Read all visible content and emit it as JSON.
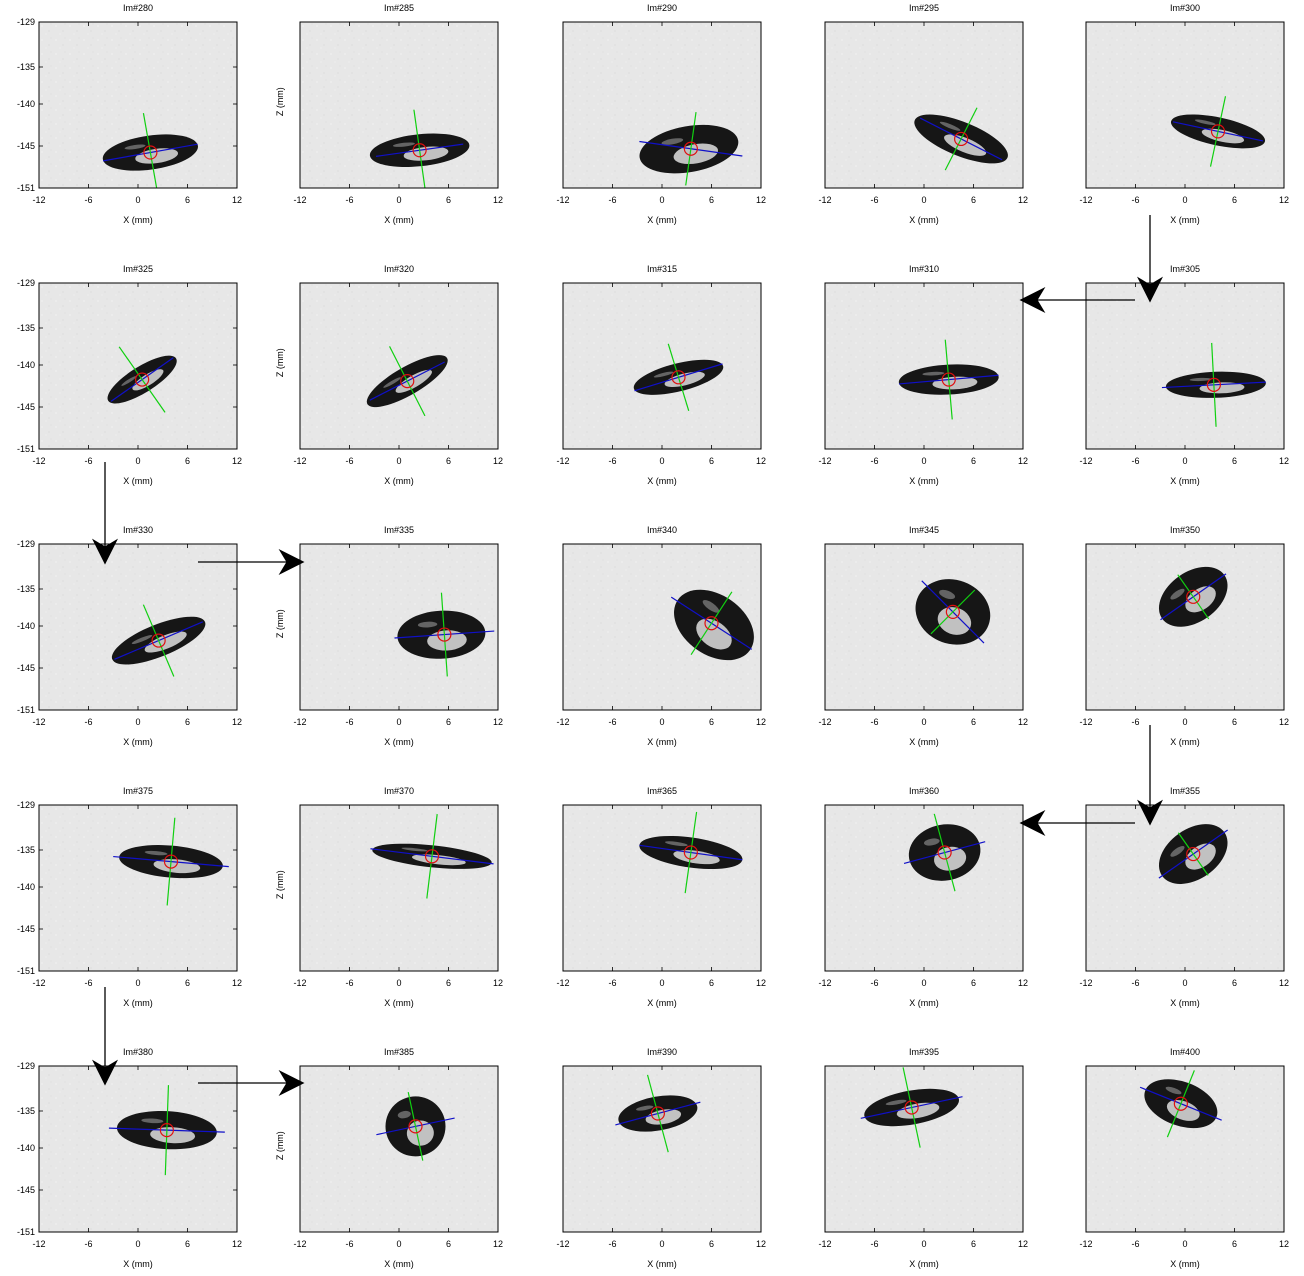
{
  "x_ticks": [
    "-12",
    "-6",
    "0",
    "6",
    "12"
  ],
  "y_ticks": [
    "-129",
    "-135",
    "-140",
    "-145",
    "-151"
  ],
  "x_label": "X (mm)",
  "y_label": "Z (mm)",
  "colors": {
    "major_axis": "#1010c8",
    "minor_axis": "#10d010",
    "centroid": "#e01010",
    "panel_background": "#e7e7e7",
    "particle": "#161616",
    "particle_core": "#d4d4d4"
  },
  "panels": [
    {
      "title": "Im#280",
      "cx": 1.5,
      "cz": -146.3
    },
    {
      "title": "Im#285",
      "cx": 2.5,
      "cz": -146.0
    },
    {
      "title": "Im#290",
      "cx": 3.5,
      "cz": -145.8
    },
    {
      "title": "Im#295",
      "cx": 4.5,
      "cz": -144.5
    },
    {
      "title": "Im#300",
      "cx": 4.0,
      "cz": -143.5
    },
    {
      "title": "Im#325",
      "cx": 0.5,
      "cz": -141.8
    },
    {
      "title": "Im#320",
      "cx": 1.0,
      "cz": -142.0
    },
    {
      "title": "Im#315",
      "cx": 2.0,
      "cz": -141.5
    },
    {
      "title": "Im#310",
      "cx": 3.0,
      "cz": -141.8
    },
    {
      "title": "Im#305",
      "cx": 3.5,
      "cz": -142.5
    },
    {
      "title": "Im#330",
      "cx": 2.5,
      "cz": -141.8
    },
    {
      "title": "Im#335",
      "cx": 5.5,
      "cz": -141.0
    },
    {
      "title": "Im#340",
      "cx": 6.0,
      "cz": -139.5
    },
    {
      "title": "Im#345",
      "cx": 3.5,
      "cz": -138.0
    },
    {
      "title": "Im#350",
      "cx": 1.0,
      "cz": -136.0
    },
    {
      "title": "Im#375",
      "cx": 4.0,
      "cz": -136.5
    },
    {
      "title": "Im#370",
      "cx": 4.0,
      "cz": -135.8
    },
    {
      "title": "Im#365",
      "cx": 3.5,
      "cz": -135.3
    },
    {
      "title": "Im#360",
      "cx": 2.5,
      "cz": -135.3
    },
    {
      "title": "Im#355",
      "cx": 1.0,
      "cz": -135.5
    },
    {
      "title": "Im#380",
      "cx": 3.5,
      "cz": -137.5
    },
    {
      "title": "Im#385",
      "cx": 2.0,
      "cz": -137.0
    },
    {
      "title": "Im#390",
      "cx": -0.5,
      "cz": -135.3
    },
    {
      "title": "Im#395",
      "cx": -1.5,
      "cz": -134.5
    },
    {
      "title": "Im#400",
      "cx": -0.5,
      "cz": -134.0
    }
  ],
  "flow_arrows": [
    {
      "direction": "down",
      "after_panel": "Im#300"
    },
    {
      "direction": "left",
      "to_panel": "Im#310"
    },
    {
      "direction": "down",
      "after_panel": "Im#325"
    },
    {
      "direction": "right",
      "to_panel": "Im#335"
    },
    {
      "direction": "down",
      "after_panel": "Im#350"
    },
    {
      "direction": "left",
      "to_panel": "Im#360"
    },
    {
      "direction": "down",
      "after_panel": "Im#375"
    },
    {
      "direction": "right",
      "to_panel": "Im#385"
    }
  ]
}
